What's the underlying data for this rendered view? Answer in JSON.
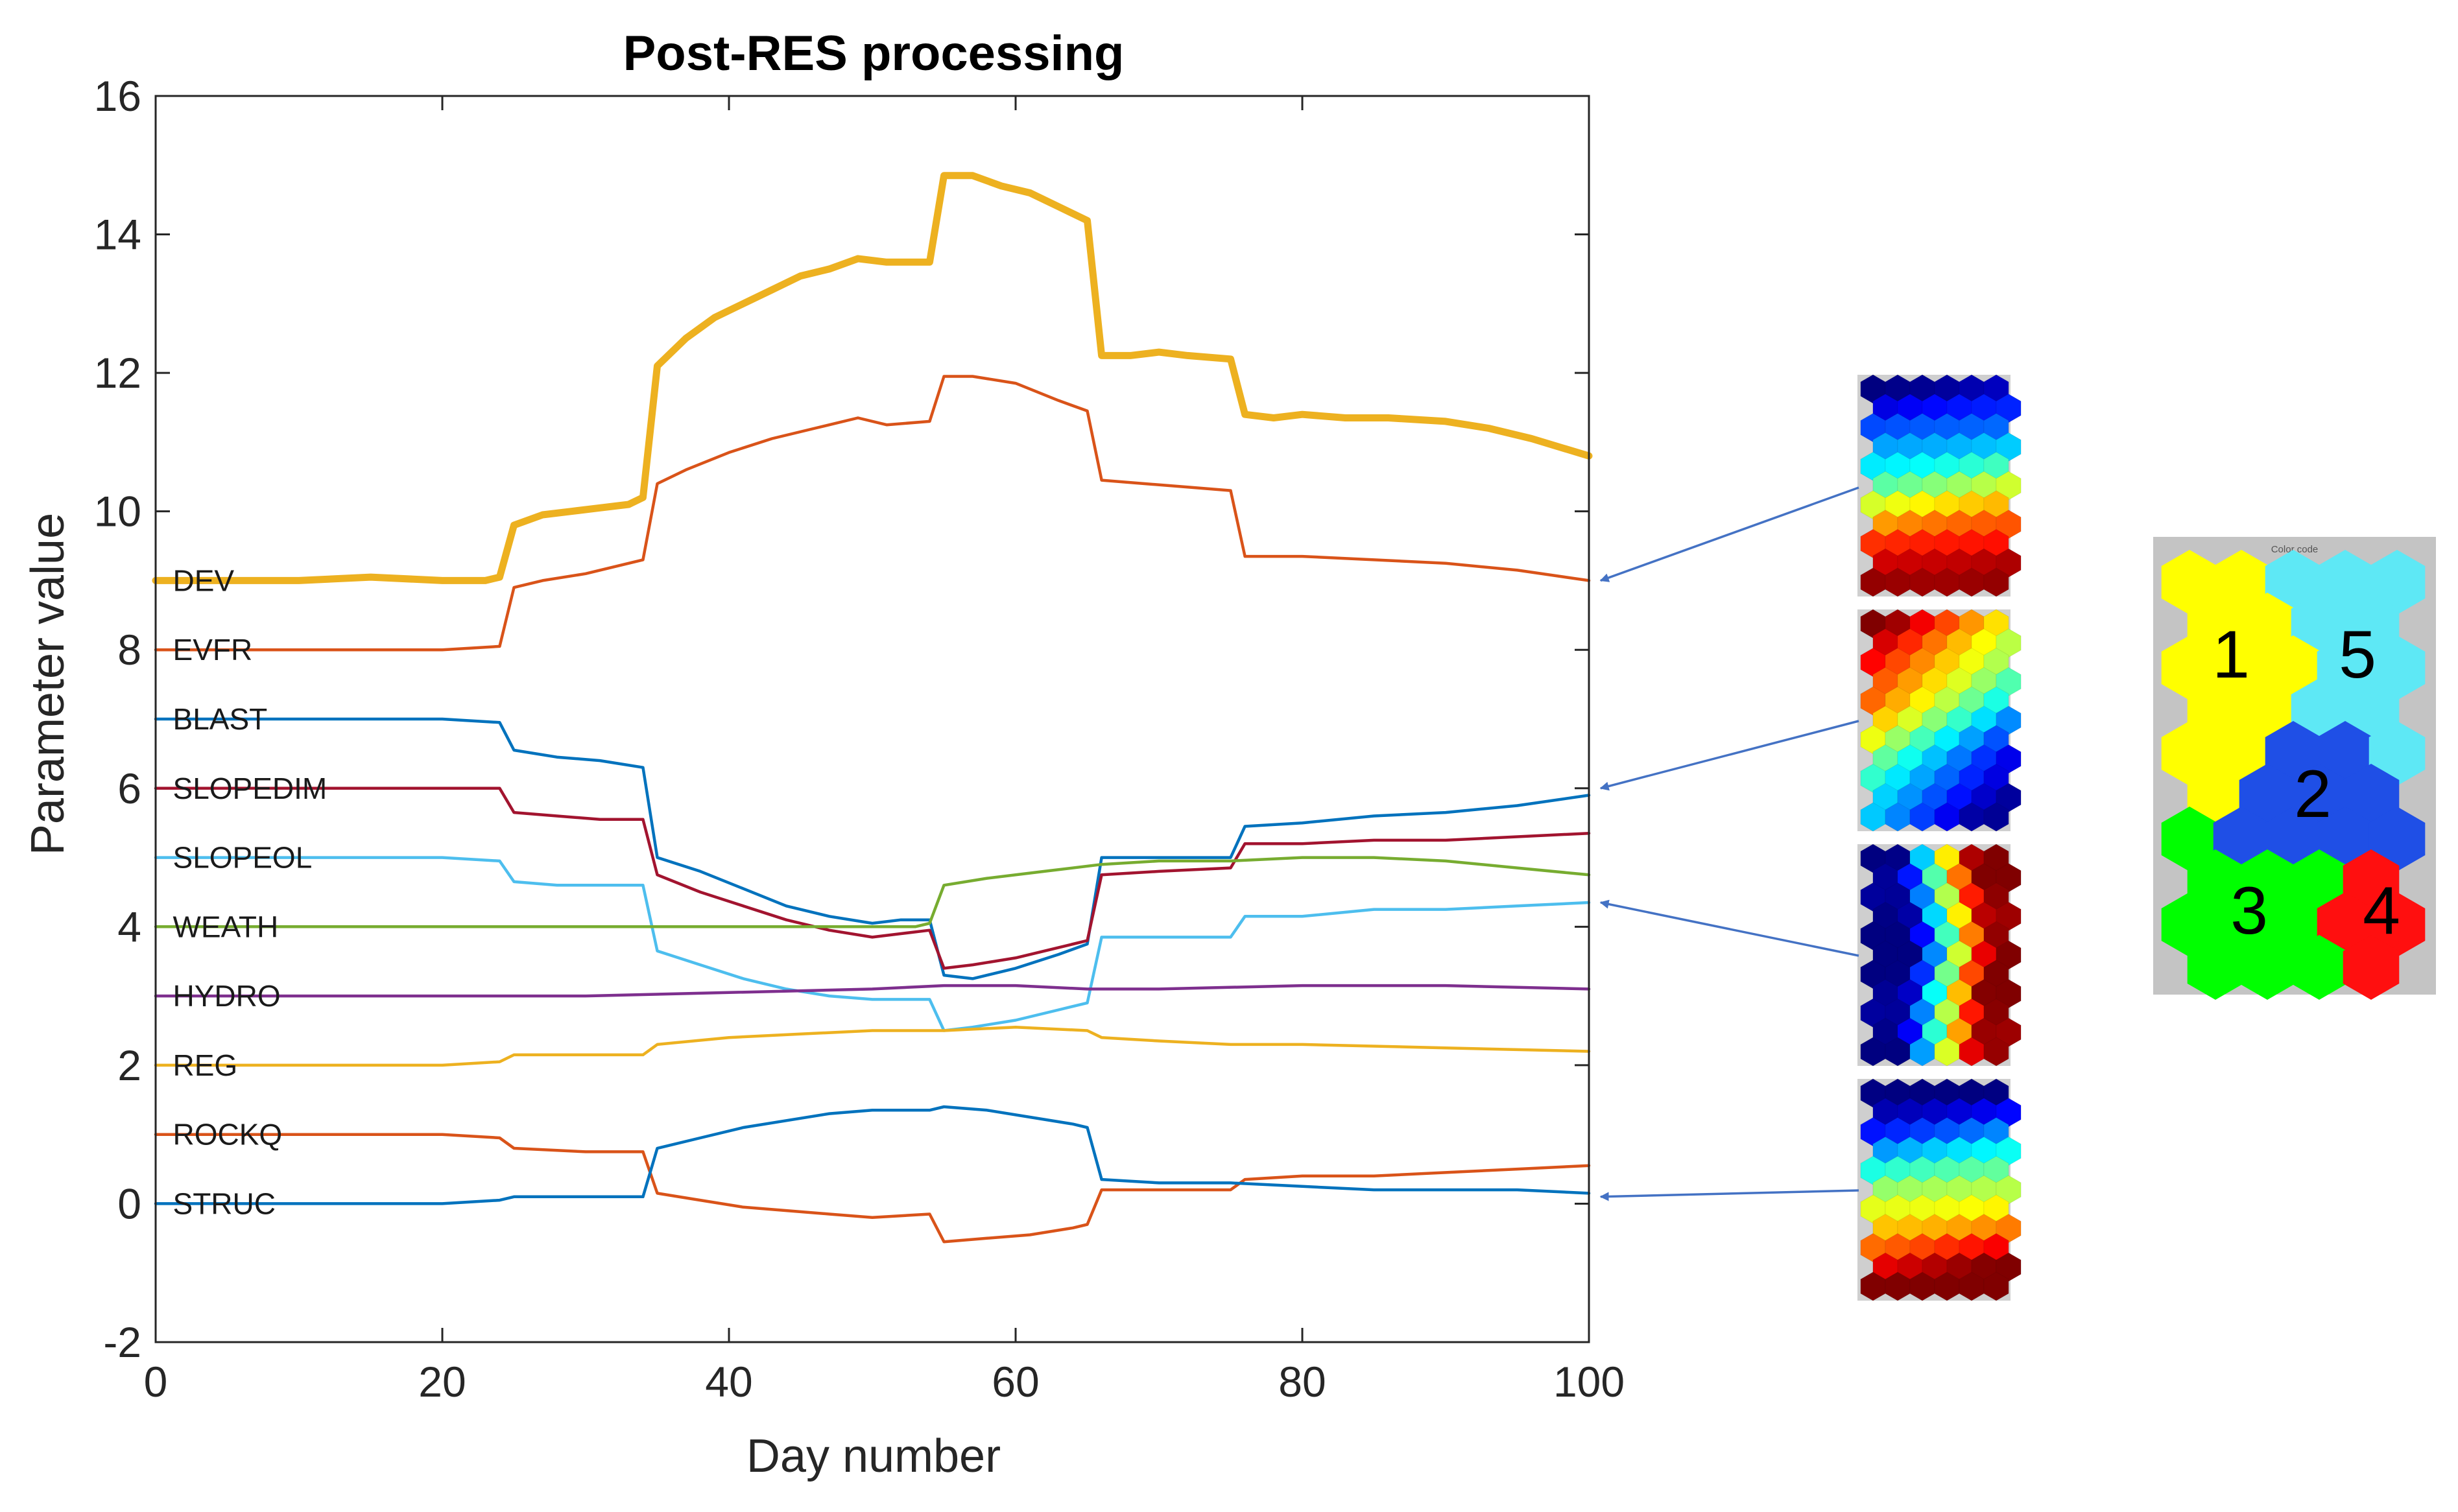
{
  "chart_data": {
    "type": "line",
    "title": "Post-RES processing",
    "xlabel": "Day number",
    "ylabel": "Parameter value",
    "xlim": [
      0,
      100
    ],
    "ylim": [
      -2,
      16
    ],
    "xticks": [
      0,
      20,
      40,
      60,
      80,
      100
    ],
    "yticks": [
      -2,
      0,
      2,
      4,
      6,
      8,
      10,
      12,
      14,
      16
    ],
    "xtick_labels": [
      "0",
      "20",
      "40",
      "60",
      "80",
      "100"
    ],
    "ytick_labels": [
      "-2",
      "0",
      "2",
      "4",
      "6",
      "8",
      "10",
      "12",
      "14",
      "16"
    ],
    "grid": false,
    "series": [
      {
        "name": "DEV",
        "label_y": 9,
        "color": "#EDB120",
        "width": "thick",
        "points": [
          [
            0,
            9.0
          ],
          [
            5,
            9.0
          ],
          [
            10,
            9.0
          ],
          [
            15,
            9.05
          ],
          [
            20,
            9.0
          ],
          [
            23,
            9.0
          ],
          [
            24,
            9.05
          ],
          [
            25,
            9.8
          ],
          [
            27,
            9.95
          ],
          [
            29,
            10.0
          ],
          [
            31,
            10.05
          ],
          [
            33,
            10.1
          ],
          [
            34,
            10.2
          ],
          [
            35,
            12.1
          ],
          [
            37,
            12.5
          ],
          [
            39,
            12.8
          ],
          [
            41,
            13.0
          ],
          [
            43,
            13.2
          ],
          [
            45,
            13.4
          ],
          [
            47,
            13.5
          ],
          [
            49,
            13.65
          ],
          [
            51,
            13.6
          ],
          [
            53,
            13.6
          ],
          [
            54,
            13.6
          ],
          [
            55,
            14.85
          ],
          [
            57,
            14.85
          ],
          [
            59,
            14.7
          ],
          [
            61,
            14.6
          ],
          [
            63,
            14.4
          ],
          [
            65,
            14.2
          ],
          [
            66,
            12.25
          ],
          [
            68,
            12.25
          ],
          [
            70,
            12.3
          ],
          [
            72,
            12.25
          ],
          [
            75,
            12.2
          ],
          [
            76,
            11.4
          ],
          [
            78,
            11.35
          ],
          [
            80,
            11.4
          ],
          [
            83,
            11.35
          ],
          [
            86,
            11.35
          ],
          [
            90,
            11.3
          ],
          [
            93,
            11.2
          ],
          [
            96,
            11.05
          ],
          [
            100,
            10.8
          ]
        ]
      },
      {
        "name": "EVFR",
        "label_y": 8,
        "color": "#D95319",
        "width": "thin",
        "points": [
          [
            0,
            8.0
          ],
          [
            10,
            8.0
          ],
          [
            20,
            8.0
          ],
          [
            24,
            8.05
          ],
          [
            25,
            8.9
          ],
          [
            27,
            9.0
          ],
          [
            30,
            9.1
          ],
          [
            34,
            9.3
          ],
          [
            35,
            10.4
          ],
          [
            37,
            10.6
          ],
          [
            40,
            10.85
          ],
          [
            43,
            11.05
          ],
          [
            46,
            11.2
          ],
          [
            49,
            11.35
          ],
          [
            51,
            11.25
          ],
          [
            54,
            11.3
          ],
          [
            55,
            11.95
          ],
          [
            57,
            11.95
          ],
          [
            60,
            11.85
          ],
          [
            63,
            11.6
          ],
          [
            65,
            11.45
          ],
          [
            66,
            10.45
          ],
          [
            69,
            10.4
          ],
          [
            72,
            10.35
          ],
          [
            75,
            10.3
          ],
          [
            76,
            9.35
          ],
          [
            80,
            9.35
          ],
          [
            85,
            9.3
          ],
          [
            90,
            9.25
          ],
          [
            95,
            9.15
          ],
          [
            100,
            9.0
          ]
        ]
      },
      {
        "name": "BLAST",
        "label_y": 7,
        "color": "#0072BD",
        "width": "thin",
        "points": [
          [
            0,
            7.0
          ],
          [
            10,
            7.0
          ],
          [
            20,
            7.0
          ],
          [
            24,
            6.95
          ],
          [
            25,
            6.55
          ],
          [
            28,
            6.45
          ],
          [
            31,
            6.4
          ],
          [
            34,
            6.3
          ],
          [
            35,
            5.0
          ],
          [
            38,
            4.8
          ],
          [
            41,
            4.55
          ],
          [
            44,
            4.3
          ],
          [
            47,
            4.15
          ],
          [
            50,
            4.05
          ],
          [
            52,
            4.1
          ],
          [
            54,
            4.1
          ],
          [
            55,
            3.3
          ],
          [
            57,
            3.25
          ],
          [
            60,
            3.4
          ],
          [
            63,
            3.6
          ],
          [
            65,
            3.75
          ],
          [
            66,
            5.0
          ],
          [
            70,
            5.0
          ],
          [
            75,
            5.0
          ],
          [
            76,
            5.45
          ],
          [
            80,
            5.5
          ],
          [
            85,
            5.6
          ],
          [
            90,
            5.65
          ],
          [
            95,
            5.75
          ],
          [
            100,
            5.9
          ]
        ]
      },
      {
        "name": "SLOPEDIM",
        "label_y": 6,
        "color": "#A2142F",
        "width": "thin",
        "points": [
          [
            0,
            6.0
          ],
          [
            10,
            6.0
          ],
          [
            20,
            6.0
          ],
          [
            24,
            6.0
          ],
          [
            25,
            5.65
          ],
          [
            28,
            5.6
          ],
          [
            31,
            5.55
          ],
          [
            34,
            5.55
          ],
          [
            35,
            4.75
          ],
          [
            38,
            4.5
          ],
          [
            41,
            4.3
          ],
          [
            44,
            4.1
          ],
          [
            47,
            3.95
          ],
          [
            50,
            3.85
          ],
          [
            52,
            3.9
          ],
          [
            54,
            3.95
          ],
          [
            55,
            3.4
          ],
          [
            57,
            3.45
          ],
          [
            60,
            3.55
          ],
          [
            63,
            3.7
          ],
          [
            65,
            3.8
          ],
          [
            66,
            4.75
          ],
          [
            70,
            4.8
          ],
          [
            75,
            4.85
          ],
          [
            76,
            5.2
          ],
          [
            80,
            5.2
          ],
          [
            85,
            5.25
          ],
          [
            90,
            5.25
          ],
          [
            95,
            5.3
          ],
          [
            100,
            5.35
          ]
        ]
      },
      {
        "name": "SLOPEOL",
        "label_y": 5,
        "color": "#4DBEEE",
        "width": "thin",
        "points": [
          [
            0,
            5.0
          ],
          [
            10,
            5.0
          ],
          [
            20,
            5.0
          ],
          [
            24,
            4.95
          ],
          [
            25,
            4.65
          ],
          [
            28,
            4.6
          ],
          [
            31,
            4.6
          ],
          [
            34,
            4.6
          ],
          [
            35,
            3.65
          ],
          [
            38,
            3.45
          ],
          [
            41,
            3.25
          ],
          [
            44,
            3.1
          ],
          [
            47,
            3.0
          ],
          [
            50,
            2.95
          ],
          [
            52,
            2.95
          ],
          [
            54,
            2.95
          ],
          [
            55,
            2.5
          ],
          [
            57,
            2.55
          ],
          [
            60,
            2.65
          ],
          [
            63,
            2.8
          ],
          [
            65,
            2.9
          ],
          [
            66,
            3.85
          ],
          [
            70,
            3.85
          ],
          [
            75,
            3.85
          ],
          [
            76,
            4.15
          ],
          [
            80,
            4.15
          ],
          [
            85,
            4.25
          ],
          [
            90,
            4.25
          ],
          [
            95,
            4.3
          ],
          [
            100,
            4.35
          ]
        ]
      },
      {
        "name": "WEATH",
        "label_y": 4,
        "color": "#77AC30",
        "width": "thin",
        "points": [
          [
            0,
            4.0
          ],
          [
            10,
            4.0
          ],
          [
            20,
            4.0
          ],
          [
            30,
            4.0
          ],
          [
            40,
            4.0
          ],
          [
            50,
            4.0
          ],
          [
            53,
            4.0
          ],
          [
            54,
            4.05
          ],
          [
            55,
            4.6
          ],
          [
            58,
            4.7
          ],
          [
            62,
            4.8
          ],
          [
            66,
            4.9
          ],
          [
            70,
            4.95
          ],
          [
            75,
            4.95
          ],
          [
            80,
            5.0
          ],
          [
            85,
            5.0
          ],
          [
            90,
            4.95
          ],
          [
            95,
            4.85
          ],
          [
            100,
            4.75
          ]
        ]
      },
      {
        "name": "HYDRO",
        "label_y": 3,
        "color": "#7E2F8E",
        "width": "thin",
        "points": [
          [
            0,
            3.0
          ],
          [
            10,
            3.0
          ],
          [
            20,
            3.0
          ],
          [
            30,
            3.0
          ],
          [
            40,
            3.05
          ],
          [
            50,
            3.1
          ],
          [
            55,
            3.15
          ],
          [
            60,
            3.15
          ],
          [
            65,
            3.1
          ],
          [
            70,
            3.1
          ],
          [
            80,
            3.15
          ],
          [
            90,
            3.15
          ],
          [
            100,
            3.1
          ]
        ]
      },
      {
        "name": "REG",
        "label_y": 2,
        "color": "#EDB120",
        "width": "thin",
        "points": [
          [
            0,
            2.0
          ],
          [
            10,
            2.0
          ],
          [
            20,
            2.0
          ],
          [
            24,
            2.05
          ],
          [
            25,
            2.15
          ],
          [
            30,
            2.15
          ],
          [
            34,
            2.15
          ],
          [
            35,
            2.3
          ],
          [
            40,
            2.4
          ],
          [
            45,
            2.45
          ],
          [
            50,
            2.5
          ],
          [
            55,
            2.5
          ],
          [
            60,
            2.55
          ],
          [
            65,
            2.5
          ],
          [
            66,
            2.4
          ],
          [
            70,
            2.35
          ],
          [
            75,
            2.3
          ],
          [
            80,
            2.3
          ],
          [
            90,
            2.25
          ],
          [
            100,
            2.2
          ]
        ]
      },
      {
        "name": "ROCKQ",
        "label_y": 1,
        "color": "#D95319",
        "width": "thin",
        "points": [
          [
            0,
            1.0
          ],
          [
            10,
            1.0
          ],
          [
            20,
            1.0
          ],
          [
            24,
            0.95
          ],
          [
            25,
            0.8
          ],
          [
            30,
            0.75
          ],
          [
            34,
            0.75
          ],
          [
            35,
            0.15
          ],
          [
            38,
            0.05
          ],
          [
            41,
            -0.05
          ],
          [
            44,
            -0.1
          ],
          [
            47,
            -0.15
          ],
          [
            50,
            -0.2
          ],
          [
            54,
            -0.15
          ],
          [
            55,
            -0.55
          ],
          [
            58,
            -0.5
          ],
          [
            61,
            -0.45
          ],
          [
            64,
            -0.35
          ],
          [
            65,
            -0.3
          ],
          [
            66,
            0.2
          ],
          [
            70,
            0.2
          ],
          [
            75,
            0.2
          ],
          [
            76,
            0.35
          ],
          [
            80,
            0.4
          ],
          [
            85,
            0.4
          ],
          [
            90,
            0.45
          ],
          [
            95,
            0.5
          ],
          [
            100,
            0.55
          ]
        ]
      },
      {
        "name": "STRUC",
        "label_y": 0,
        "color": "#0072BD",
        "width": "thin",
        "points": [
          [
            0,
            0.0
          ],
          [
            10,
            0.0
          ],
          [
            20,
            0.0
          ],
          [
            24,
            0.05
          ],
          [
            25,
            0.1
          ],
          [
            30,
            0.1
          ],
          [
            34,
            0.1
          ],
          [
            35,
            0.8
          ],
          [
            38,
            0.95
          ],
          [
            41,
            1.1
          ],
          [
            44,
            1.2
          ],
          [
            47,
            1.3
          ],
          [
            50,
            1.35
          ],
          [
            54,
            1.35
          ],
          [
            55,
            1.4
          ],
          [
            58,
            1.35
          ],
          [
            61,
            1.25
          ],
          [
            64,
            1.15
          ],
          [
            65,
            1.1
          ],
          [
            66,
            0.35
          ],
          [
            70,
            0.3
          ],
          [
            75,
            0.3
          ],
          [
            80,
            0.25
          ],
          [
            85,
            0.2
          ],
          [
            90,
            0.2
          ],
          [
            95,
            0.2
          ],
          [
            100,
            0.15
          ]
        ]
      }
    ],
    "som_maps": [
      {
        "name": "som-map-1",
        "pattern": "vertical",
        "points_to_y": 9
      },
      {
        "name": "som-map-2",
        "pattern": "diagonal",
        "points_to_y": 6
      },
      {
        "name": "som-map-3",
        "pattern": "chevron",
        "points_to_y": 4.35
      },
      {
        "name": "som-map-4",
        "pattern": "vertical",
        "points_to_y": 0.1
      }
    ],
    "color_code": {
      "caption": "Color code",
      "clusters": [
        {
          "label": "1",
          "color": "#FFFF00"
        },
        {
          "label": "5",
          "color": "#5EE8F5"
        },
        {
          "label": "2",
          "color": "#1F4FE6"
        },
        {
          "label": "3",
          "color": "#00FF00"
        },
        {
          "label": "4",
          "color": "#FF0F0F"
        }
      ]
    }
  }
}
